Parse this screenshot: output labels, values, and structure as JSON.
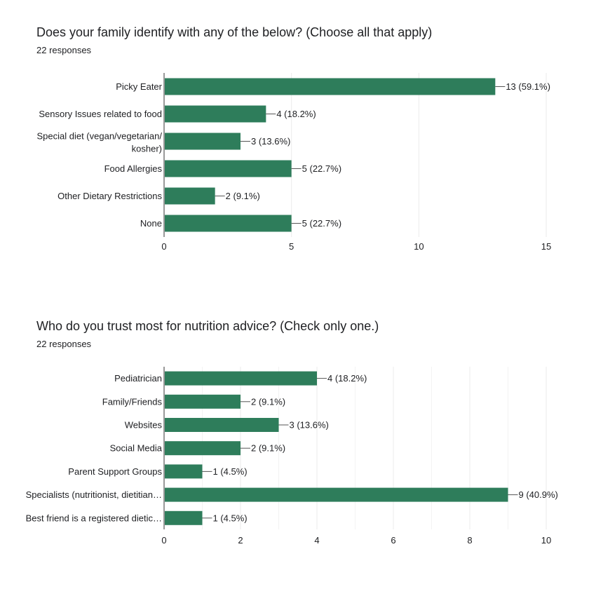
{
  "colors": {
    "bar": "#2e7d5b",
    "grid": "#ebebeb",
    "axis": "#333333"
  },
  "chart_data": [
    {
      "type": "bar",
      "orientation": "horizontal",
      "title": "Does your family identify with any of the below? (Choose all that apply)",
      "subtitle": "22 responses",
      "categories": [
        "Picky Eater",
        "Sensory Issues related to food",
        "Special diet (vegan/vegetarian/ kosher)",
        "Food Allergies",
        "Other Dietary Restrictions",
        "None"
      ],
      "values": [
        13,
        4,
        3,
        5,
        2,
        5
      ],
      "data_labels": [
        "13 (59.1%)",
        "4 (18.2%)",
        "3 (13.6%)",
        "5 (22.7%)",
        "2 (9.1%)",
        "5 (22.7%)"
      ],
      "xlim": [
        0,
        15
      ],
      "xticks": [
        0,
        5,
        10,
        15
      ],
      "grid": true
    },
    {
      "type": "bar",
      "orientation": "horizontal",
      "title": "Who do you trust most for nutrition advice? (Check only one.)",
      "subtitle": "22 responses",
      "categories": [
        "Pediatrician",
        "Family/Friends",
        "Websites",
        "Social Media",
        "Parent Support Groups",
        "Specialists (nutritionist, dietitian…",
        "Best friend is a registered dietic…"
      ],
      "values": [
        4,
        2,
        3,
        2,
        1,
        9,
        1
      ],
      "data_labels": [
        "4 (18.2%)",
        "2 (9.1%)",
        "3 (13.6%)",
        "2 (9.1%)",
        "1 (4.5%)",
        "9 (40.9%)",
        "1 (4.5%)"
      ],
      "xlim": [
        0,
        10
      ],
      "xticks": [
        0,
        2,
        4,
        6,
        8,
        10
      ],
      "grid": true
    }
  ]
}
